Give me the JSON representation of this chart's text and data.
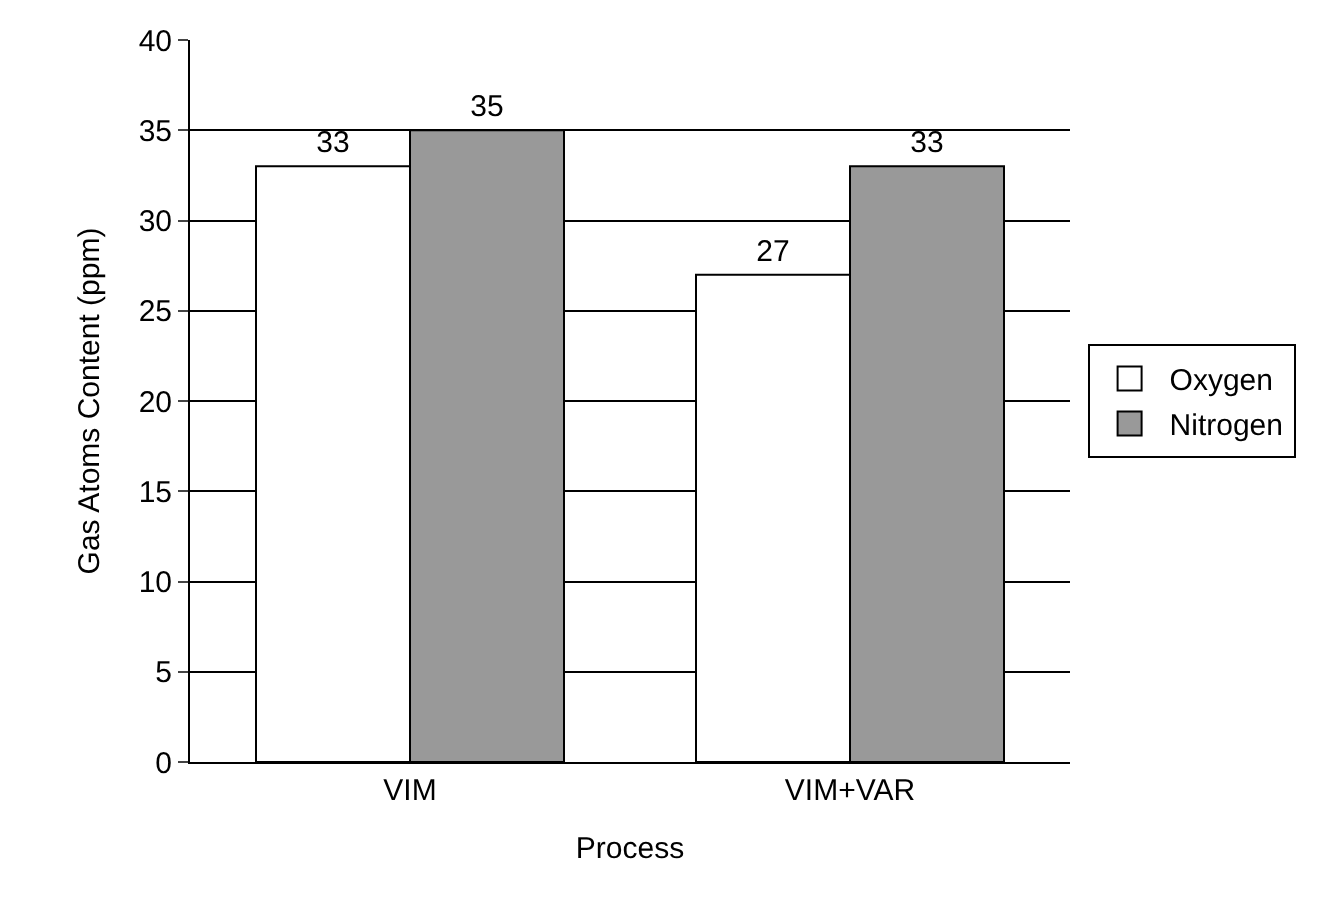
{
  "chart_data": {
    "type": "bar",
    "xlabel": "Process",
    "ylabel": "Gas Atoms Content (ppm)",
    "categories": [
      "VIM",
      "VIM+VAR"
    ],
    "series": [
      {
        "name": "Oxygen",
        "color": "#ffffff",
        "values": [
          33,
          27
        ]
      },
      {
        "name": "Nitrogen",
        "color": "#999999",
        "values": [
          35,
          33
        ]
      }
    ],
    "ylim": [
      0,
      40
    ],
    "yticks": [
      0,
      5,
      10,
      15,
      20,
      25,
      30,
      35,
      40
    ],
    "grid": "y",
    "legend": "right",
    "data_labels": true
  }
}
